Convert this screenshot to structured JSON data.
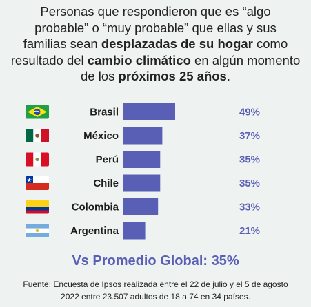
{
  "title": {
    "l1": "Personas que respondieron que es “algo",
    "l2": "probable” o “muy probable” que ellas y sus",
    "l3a": "familias sean ",
    "l3b": "desplazadas de su hogar",
    "l3c": " como",
    "l4a": "resultado del ",
    "l4b": "cambio climático",
    "l4c": " en algún momento",
    "l5a": "de los ",
    "l5b": "próximos 25 años",
    "l5c": "."
  },
  "summary": "Vs Promedio Global: 35%",
  "source": {
    "l1": "Fuente: Encuesta de Ipsos realizada entre el 22 de julio y el 5 de agosto",
    "l2": "2022 entre 23.507 adultos de 18 a 74 en 34 países."
  },
  "colors": {
    "bar": "#5a5fb6",
    "pct": "#5a5fb6",
    "background": "#eef2f1"
  },
  "chart_data": {
    "type": "bar",
    "orientation": "horizontal",
    "categories": [
      "Brasil",
      "México",
      "Perú",
      "Chile",
      "Colombia",
      "Argentina"
    ],
    "values": [
      49,
      37,
      35,
      35,
      33,
      21
    ],
    "value_labels": [
      "49%",
      "37%",
      "35%",
      "35%",
      "33%",
      "21%"
    ],
    "flags": [
      "brazil-flag-icon",
      "mexico-flag-icon",
      "peru-flag-icon",
      "chile-flag-icon",
      "colombia-flag-icon",
      "argentina-flag-icon"
    ],
    "xlim": [
      0,
      100
    ],
    "grid": false,
    "legend": "none"
  }
}
